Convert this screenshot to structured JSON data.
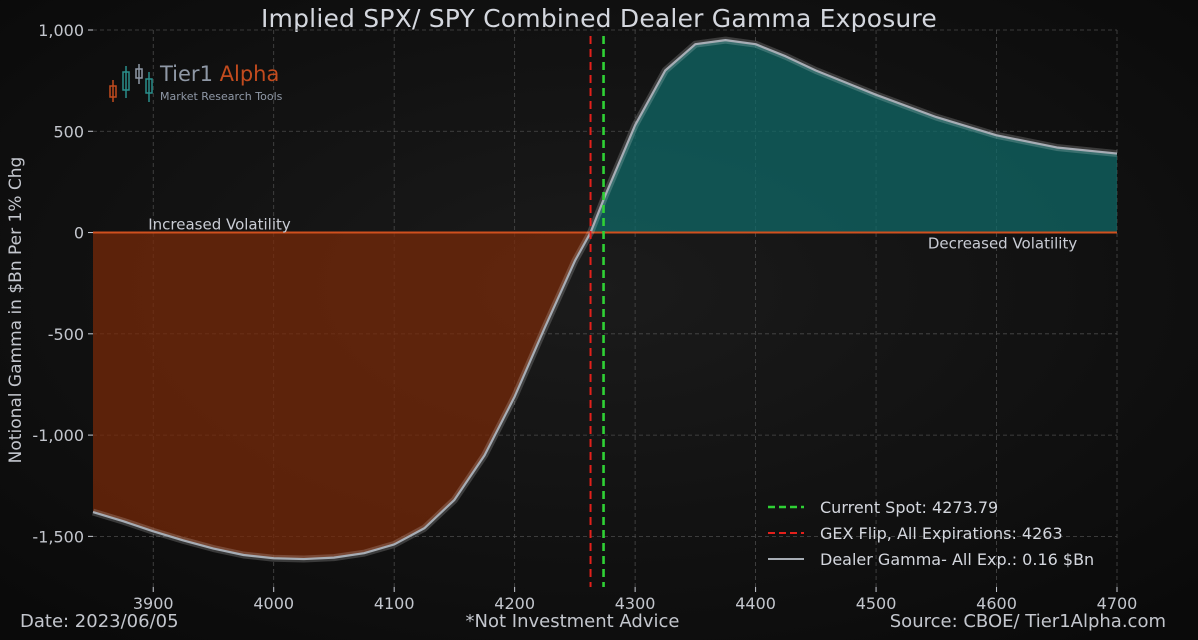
{
  "chart_data": {
    "type": "area",
    "title": "Implied SPX/ SPY Combined Dealer Gamma Exposure",
    "ylabel": "Notional Gamma in $Bn Per 1% Chg",
    "xlabel": "",
    "xlim": [
      3850,
      4700
    ],
    "ylim": [
      -1750,
      1000
    ],
    "xticks": [
      3900,
      4000,
      4100,
      4200,
      4300,
      4400,
      4500,
      4600,
      4700
    ],
    "yticks": [
      -1500,
      -1000,
      -500,
      0,
      500,
      1000
    ],
    "ytick_labels": [
      "-1,500",
      "-1,000",
      "-500",
      "0",
      "500",
      "1,000"
    ],
    "grid": true,
    "series": [
      {
        "name": "Dealer Gamma- All Exp.: 0.16 $Bn",
        "x": [
          3850,
          3875,
          3900,
          3925,
          3950,
          3975,
          4000,
          4025,
          4050,
          4075,
          4100,
          4125,
          4150,
          4175,
          4200,
          4225,
          4250,
          4263,
          4275,
          4300,
          4325,
          4350,
          4375,
          4400,
          4425,
          4450,
          4475,
          4500,
          4550,
          4600,
          4650,
          4700
        ],
        "y": [
          -1380,
          -1425,
          -1475,
          -1520,
          -1560,
          -1592,
          -1608,
          -1612,
          -1605,
          -1583,
          -1540,
          -1460,
          -1320,
          -1100,
          -810,
          -470,
          -140,
          0,
          180,
          530,
          800,
          930,
          950,
          930,
          870,
          800,
          740,
          680,
          570,
          480,
          420,
          390
        ]
      }
    ],
    "lines": [
      {
        "name": "Current Spot: 4273.79",
        "x": 4273.79,
        "color": "#2fd135",
        "style": "dashed"
      },
      {
        "name": "GEX Flip, All Expirations: 4263",
        "x": 4263,
        "color": "#e3201b",
        "style": "dashed"
      }
    ],
    "annotations": [
      {
        "text": "Increased Volatility",
        "x": 3955,
        "y": 0,
        "position": "above"
      },
      {
        "text": "Decreased Volatility",
        "x": 4605,
        "y": 0,
        "position": "below"
      }
    ],
    "legend_position": "bottom-right",
    "colors": {
      "negative_fill": "#7a2a08",
      "positive_fill": "#0f6b6a",
      "curve": "#a7adb5",
      "zero_line": "#d0501e",
      "grid": "#4a4a4a"
    }
  },
  "logo": {
    "brand_main": "Tier1",
    "brand_accent": "Alpha",
    "tagline": "Market Research Tools"
  },
  "footer": {
    "date": "Date: 2023/06/05",
    "disclaimer": "*Not Investment Advice",
    "source": "Source: CBOE/ Tier1Alpha.com"
  }
}
